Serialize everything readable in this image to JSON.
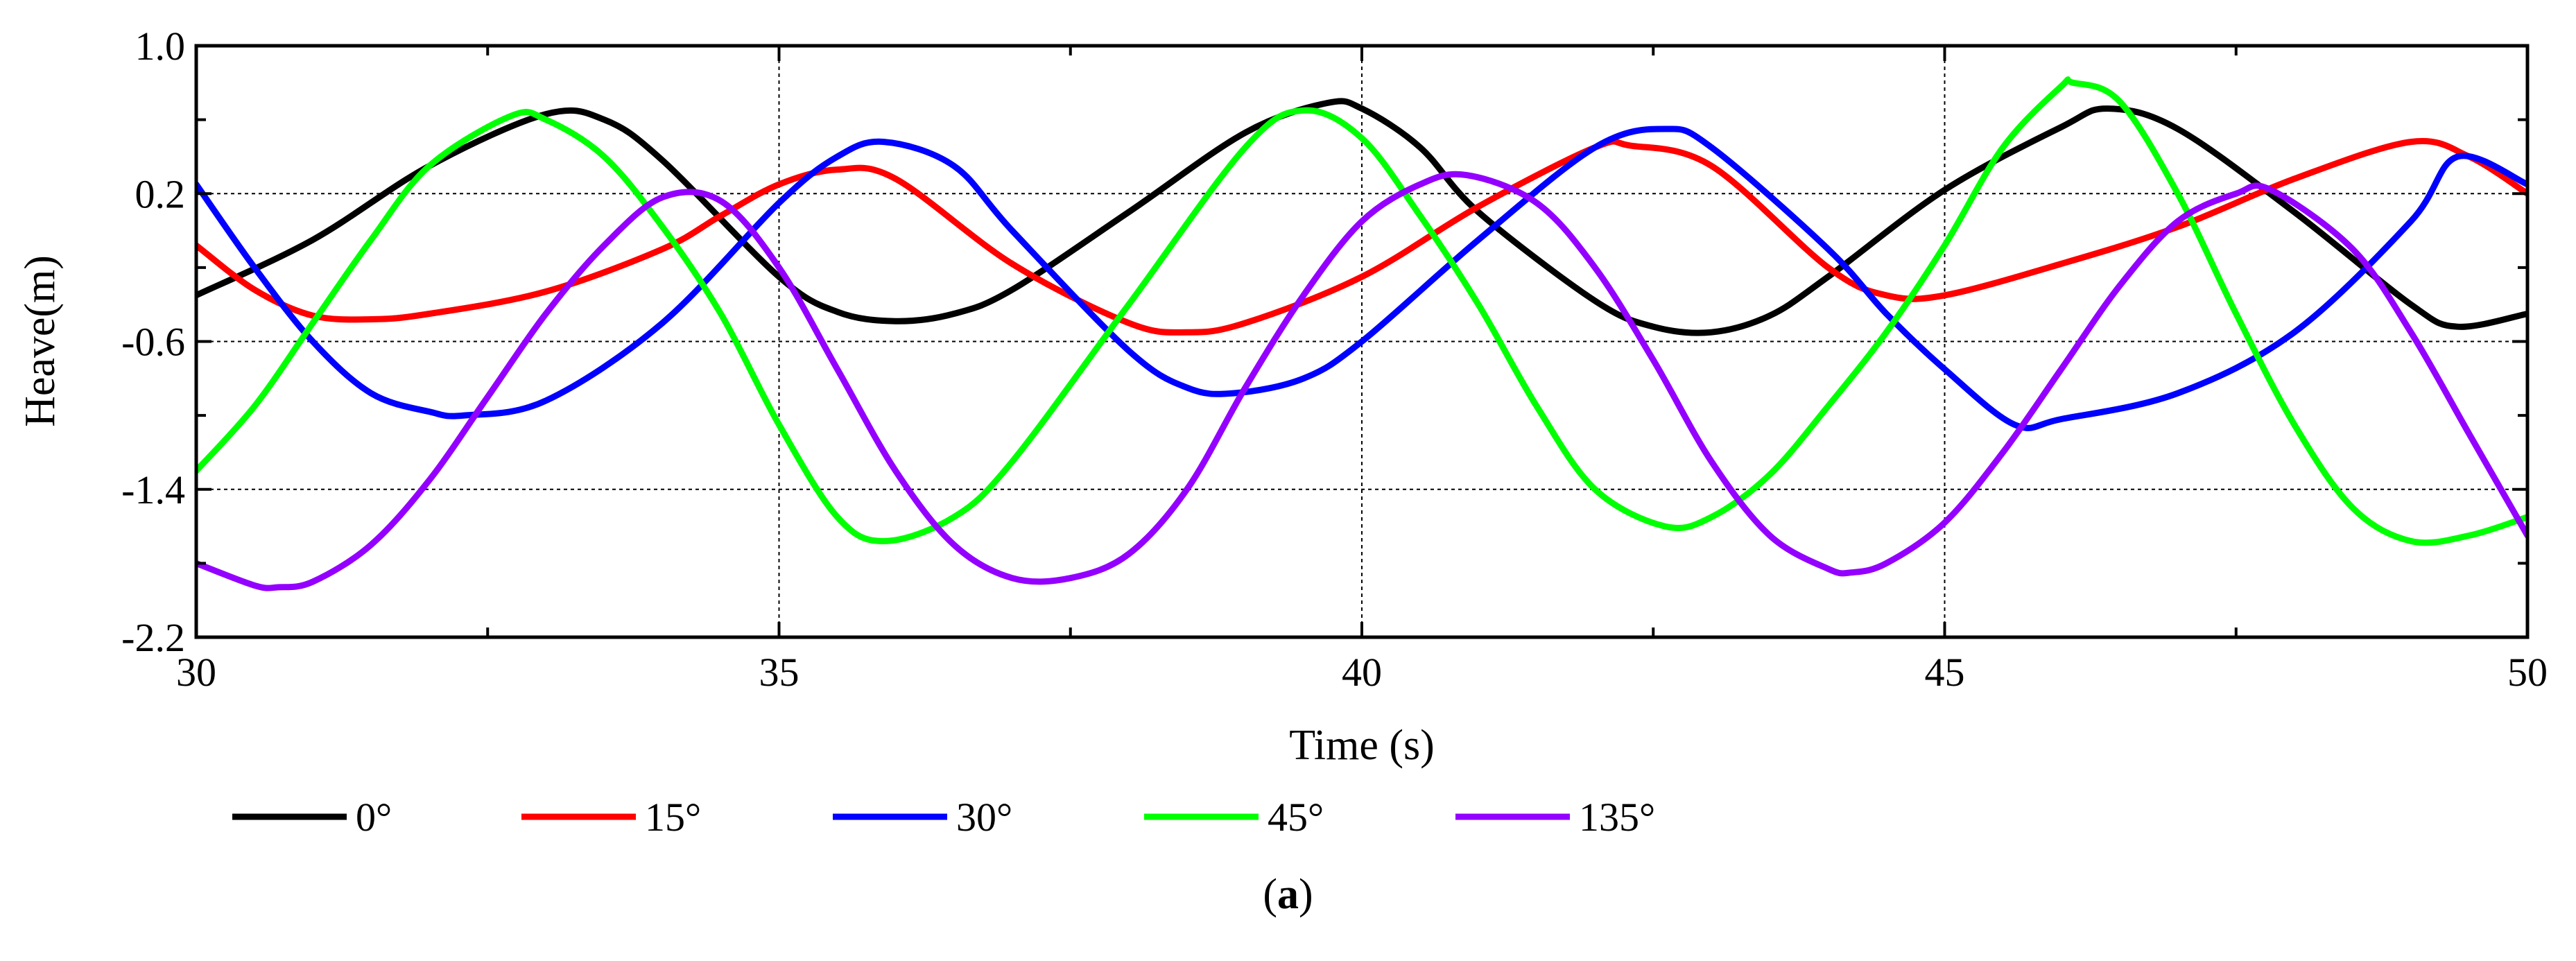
{
  "chart_data": {
    "type": "line",
    "title": "",
    "xlabel": "Time (s)",
    "ylabel": "Heave(m)",
    "xlim": [
      30,
      50
    ],
    "ylim": [
      -2.2,
      1.0
    ],
    "xticks": [
      30,
      35,
      40,
      45,
      50
    ],
    "yticks": [
      -2.2,
      -1.4,
      -0.6,
      0.2,
      1.0
    ],
    "ytick_labels": [
      "-2.2",
      "-1.4",
      "-0.6",
      "0.2",
      "1.0"
    ],
    "grid": true,
    "legend_position": "bottom-left",
    "series": [
      {
        "name": "0°",
        "color": "#000000",
        "x": [
          30,
          31,
          32,
          33,
          33.5,
          34,
          35,
          35.5,
          36,
          36.5,
          37,
          38,
          39,
          39.7,
          40,
          40.5,
          41,
          42,
          42.5,
          43,
          43.5,
          44,
          45,
          46,
          46.4,
          47,
          48,
          49,
          49.4,
          50
        ],
        "y": [
          -0.35,
          -0.05,
          0.35,
          0.63,
          0.6,
          0.38,
          -0.25,
          -0.44,
          -0.49,
          -0.45,
          -0.32,
          0.1,
          0.53,
          0.69,
          0.66,
          0.45,
          0.1,
          -0.38,
          -0.52,
          -0.55,
          -0.46,
          -0.25,
          0.22,
          0.56,
          0.66,
          0.55,
          0.1,
          -0.4,
          -0.52,
          -0.45
        ]
      },
      {
        "name": "15°",
        "color": "#ff0000",
        "x": [
          30,
          30.5,
          31,
          31.5,
          32,
          33,
          34,
          34.5,
          35,
          35.5,
          36,
          37,
          38,
          38.5,
          39,
          40,
          41,
          42,
          42.3,
          43,
          44,
          44.5,
          45,
          46,
          47,
          48,
          49,
          49.5,
          50
        ],
        "y": [
          -0.08,
          -0.32,
          -0.46,
          -0.48,
          -0.45,
          -0.33,
          -0.1,
          0.08,
          0.25,
          0.33,
          0.28,
          -0.18,
          -0.5,
          -0.55,
          -0.5,
          -0.25,
          0.13,
          0.45,
          0.46,
          0.35,
          -0.2,
          -0.35,
          -0.35,
          -0.18,
          0.02,
          0.28,
          0.48,
          0.4,
          0.2
        ]
      },
      {
        "name": "30°",
        "color": "#0000ff",
        "x": [
          30,
          30.5,
          31,
          31.5,
          32,
          32.3,
          33,
          34,
          35,
          35.5,
          35.9,
          36.5,
          37,
          38,
          38.5,
          38.9,
          39.5,
          40,
          41,
          42,
          42.6,
          43,
          44,
          44.5,
          45,
          45.6,
          46,
          47,
          48,
          49,
          49.4,
          50
        ],
        "y": [
          0.25,
          -0.2,
          -0.6,
          -0.88,
          -0.98,
          -1.0,
          -0.92,
          -0.5,
          0.15,
          0.4,
          0.48,
          0.35,
          0.0,
          -0.65,
          -0.85,
          -0.88,
          -0.8,
          -0.6,
          -0.05,
          0.45,
          0.55,
          0.45,
          -0.1,
          -0.45,
          -0.75,
          -1.05,
          -1.02,
          -0.88,
          -0.55,
          0.05,
          0.4,
          0.25
        ]
      },
      {
        "name": "45°",
        "color": "#00ff00",
        "x": [
          30,
          30.5,
          31,
          31.5,
          32,
          32.7,
          33,
          33.5,
          34,
          34.5,
          35,
          35.5,
          35.9,
          36.5,
          37,
          38,
          39,
          39.5,
          40,
          40.5,
          41,
          41.5,
          42,
          42.6,
          43,
          43.5,
          44,
          44.5,
          45,
          45.5,
          46,
          46.1,
          46.5,
          47,
          47.5,
          48,
          48.5,
          49,
          49.5,
          50
        ],
        "y": [
          -1.3,
          -0.95,
          -0.5,
          -0.05,
          0.35,
          0.62,
          0.6,
          0.4,
          0.02,
          -0.45,
          -1.05,
          -1.55,
          -1.68,
          -1.55,
          -1.25,
          -0.4,
          0.45,
          0.65,
          0.5,
          0.08,
          -0.4,
          -0.95,
          -1.4,
          -1.6,
          -1.55,
          -1.32,
          -0.95,
          -0.55,
          -0.08,
          0.45,
          0.78,
          0.8,
          0.7,
          0.2,
          -0.45,
          -1.05,
          -1.5,
          -1.68,
          -1.65,
          -1.55
        ]
      },
      {
        "name": "135°",
        "color": "#9400ff",
        "x": [
          30,
          30.5,
          30.7,
          31,
          31.5,
          32,
          32.5,
          33,
          33.5,
          34,
          34.5,
          35,
          35.5,
          36,
          36.5,
          37,
          37.5,
          38,
          38.5,
          39,
          39.5,
          40,
          40.5,
          40.9,
          41.5,
          42,
          42.5,
          43,
          43.5,
          44,
          44.2,
          44.5,
          45,
          45.5,
          46,
          46.5,
          47,
          47.5,
          47.8,
          48.5,
          49,
          49.5,
          50
        ],
        "y": [
          -1.8,
          -1.92,
          -1.93,
          -1.9,
          -1.7,
          -1.35,
          -0.9,
          -0.45,
          -0.08,
          0.18,
          0.16,
          -0.2,
          -0.75,
          -1.3,
          -1.7,
          -1.88,
          -1.88,
          -1.75,
          -1.4,
          -0.85,
          -0.35,
          0.05,
          0.25,
          0.3,
          0.15,
          -0.2,
          -0.7,
          -1.25,
          -1.65,
          -1.83,
          -1.85,
          -1.8,
          -1.58,
          -1.2,
          -0.75,
          -0.3,
          0.05,
          0.2,
          0.22,
          -0.1,
          -0.55,
          -1.1,
          -1.65
        ]
      }
    ]
  },
  "panel_label": "a"
}
